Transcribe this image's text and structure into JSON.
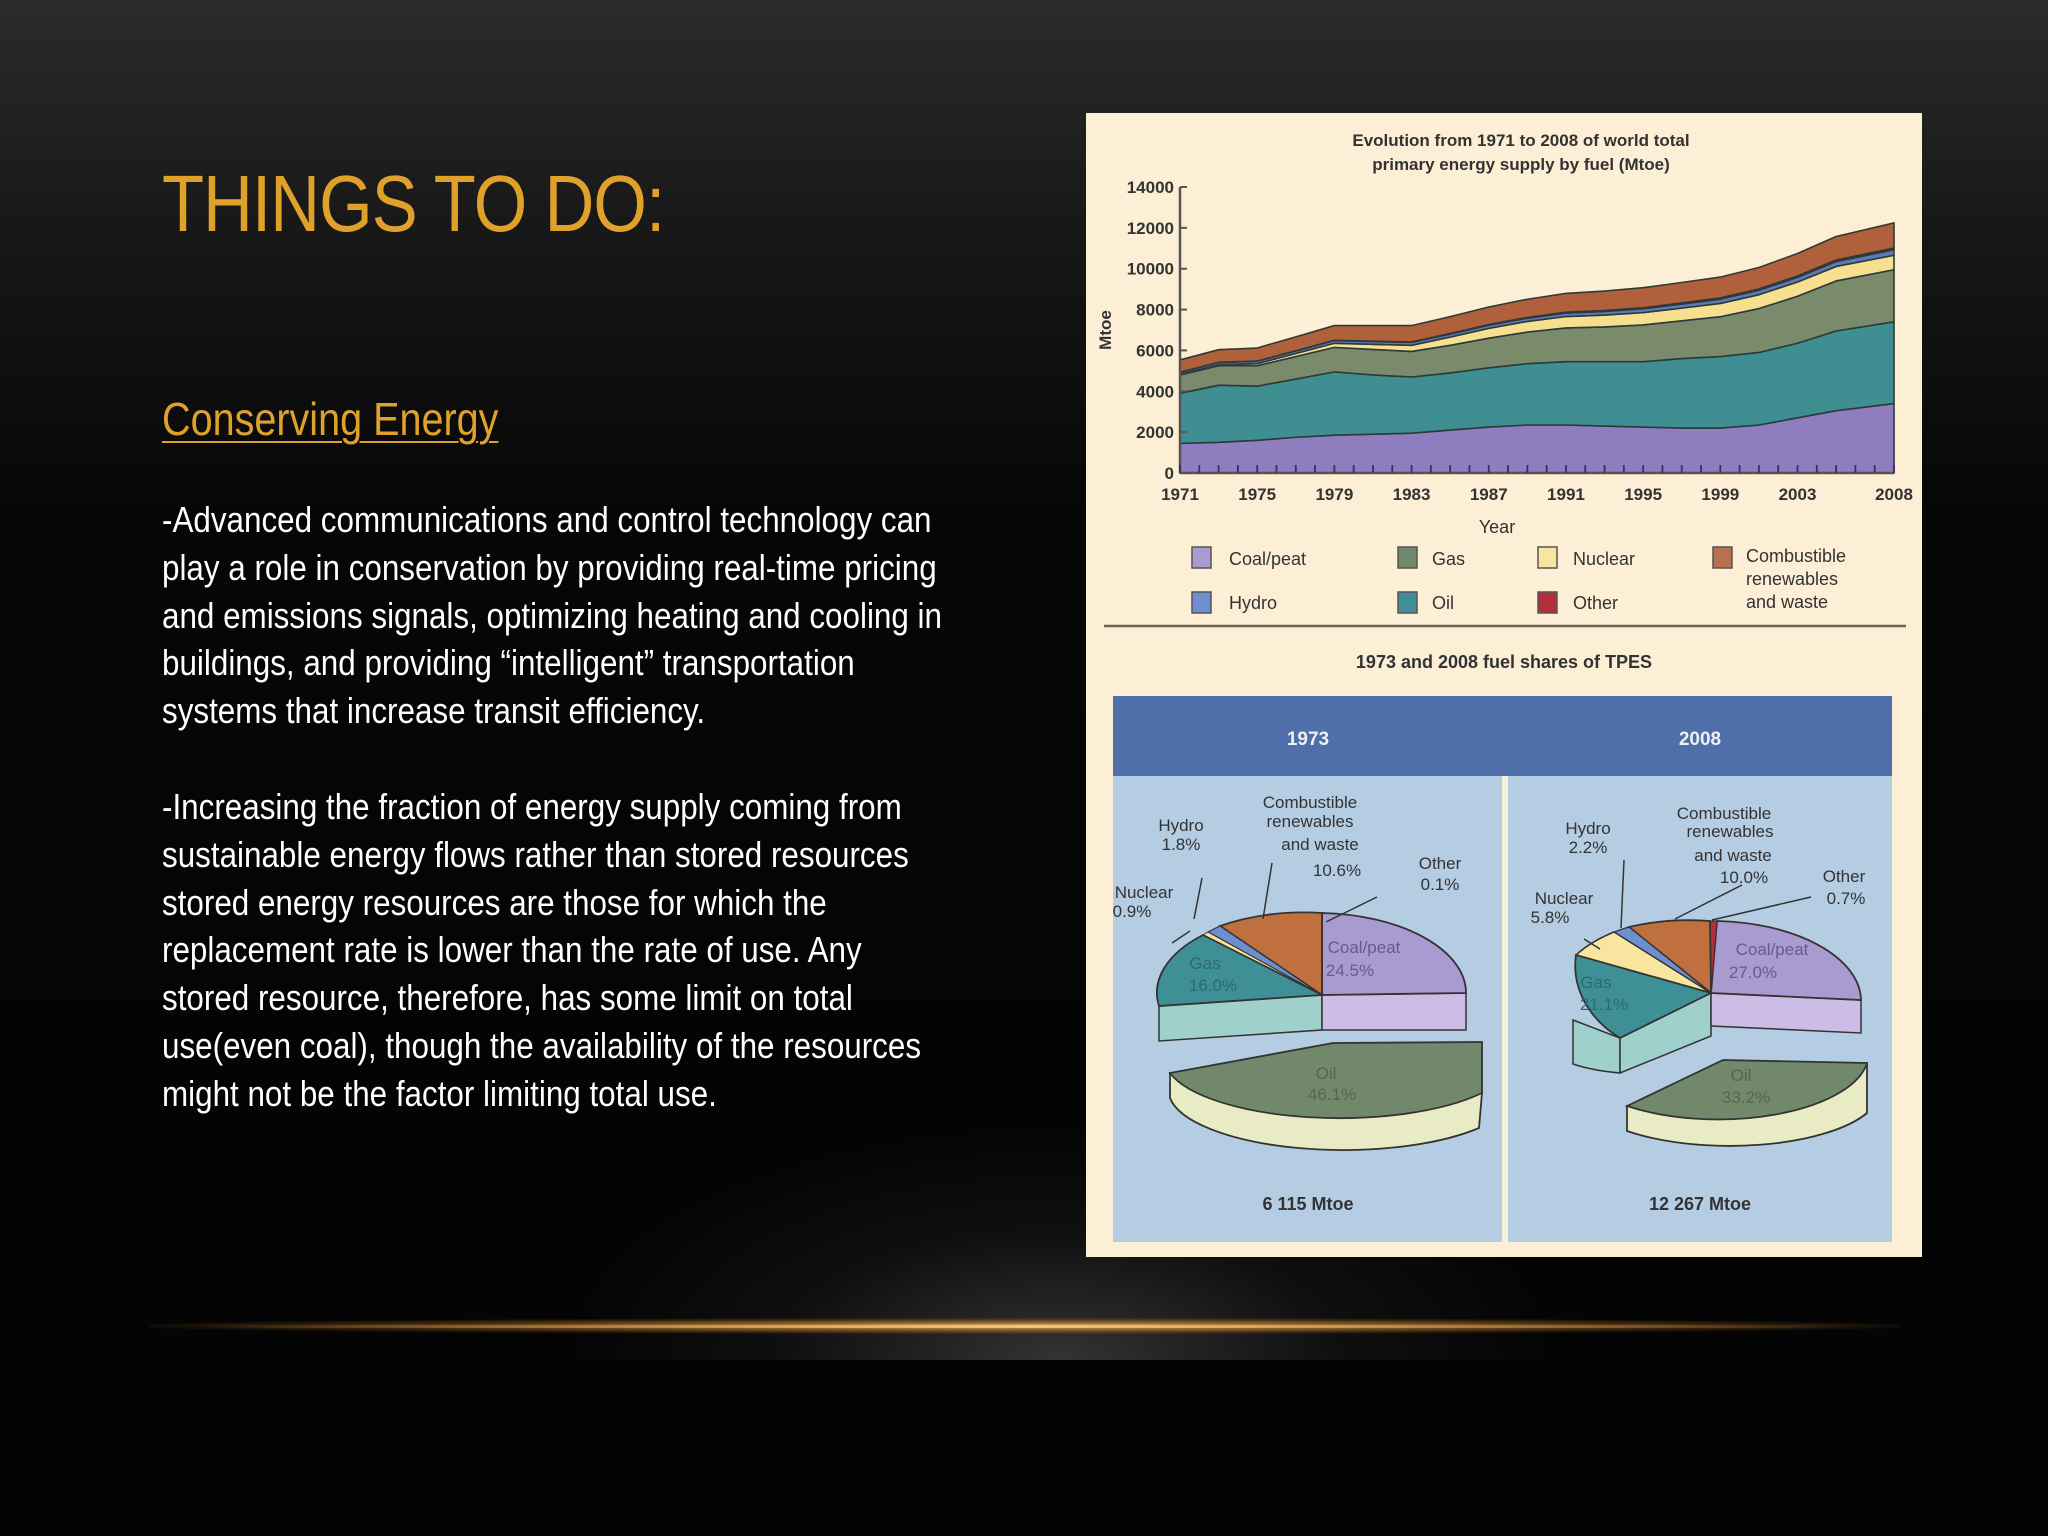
{
  "slide": {
    "title": "THINGS TO DO:",
    "subtitle": "Conserving Energy",
    "paragraph1_lines": [
      "-Advanced communications and control technology can",
      "play a role in conservation by providing real-time pricing",
      "and emissions signals, optimizing heating and cooling in",
      "buildings, and providing “intelligent” transportation",
      "systems that increase transit efficiency."
    ],
    "paragraph2_lines": [
      "-Increasing the fraction of energy supply coming from",
      "sustainable energy flows rather than stored resources",
      "stored energy resources are those for which the",
      "replacement rate is lower than the rate of use. Any",
      "stored resource, therefore, has some limit on total",
      "use(even coal), though the availability of the resources",
      "might not be the factor limiting total use."
    ]
  },
  "colors": {
    "accent": "#e0a12a",
    "coal": "#8e7dbf",
    "oil": "#3f8f92",
    "gas": "#7a8b6c",
    "nuclear": "#f6df8e",
    "hydro": "#6079b8",
    "other": "#b0303a",
    "combustible": "#b0603a",
    "pie_panel_bg": "#b5cde3",
    "pie_header_bg": "#4e6fa9",
    "figure_bg": "#fcefd5"
  },
  "chart_data": [
    {
      "type": "area",
      "stacked": true,
      "title": "Evolution from 1971 to 2008 of world total primary energy supply by fuel (Mtoe)",
      "title_lines": [
        "Evolution from 1971 to 2008 of world total",
        "primary energy supply by fuel (Mtoe)"
      ],
      "xlabel": "Year",
      "ylabel": "Mtoe",
      "ylim": [
        0,
        14000
      ],
      "yticks": [
        "0",
        "2000",
        "4000",
        "6000",
        "8000",
        "10000",
        "12000",
        "14000"
      ],
      "xticks": [
        "1971",
        "1975",
        "1979",
        "1983",
        "1987",
        "1991",
        "1995",
        "1999",
        "2003",
        "2008"
      ],
      "x": [
        1971,
        1973,
        1975,
        1977,
        1979,
        1981,
        1983,
        1985,
        1987,
        1989,
        1991,
        1993,
        1995,
        1997,
        1999,
        2001,
        2003,
        2005,
        2008
      ],
      "series": [
        {
          "name": "Coal/peat",
          "values": [
            1450,
            1500,
            1600,
            1750,
            1850,
            1900,
            1950,
            2100,
            2250,
            2350,
            2350,
            2300,
            2250,
            2200,
            2200,
            2350,
            2700,
            3050,
            3400
          ]
        },
        {
          "name": "Oil",
          "values": [
            2450,
            2800,
            2650,
            2850,
            3100,
            2900,
            2750,
            2800,
            2900,
            3000,
            3100,
            3150,
            3200,
            3400,
            3500,
            3550,
            3650,
            3900,
            4000
          ]
        },
        {
          "name": "Gas",
          "values": [
            900,
            950,
            1000,
            1100,
            1200,
            1250,
            1250,
            1350,
            1450,
            1550,
            1650,
            1700,
            1800,
            1850,
            1950,
            2150,
            2300,
            2450,
            2550
          ]
        },
        {
          "name": "Nuclear",
          "values": [
            30,
            50,
            100,
            150,
            200,
            250,
            300,
            400,
            480,
            520,
            560,
            580,
            600,
            620,
            650,
            680,
            700,
            710,
            710
          ]
        },
        {
          "name": "Hydro",
          "values": [
            100,
            110,
            120,
            125,
            135,
            140,
            145,
            150,
            155,
            160,
            170,
            180,
            190,
            200,
            210,
            215,
            225,
            240,
            270
          ]
        },
        {
          "name": "Other",
          "values": [
            5,
            6,
            8,
            10,
            12,
            15,
            20,
            25,
            30,
            35,
            40,
            45,
            50,
            55,
            60,
            65,
            70,
            75,
            85
          ]
        },
        {
          "name": "Combustible renewables and waste",
          "values": [
            600,
            620,
            640,
            680,
            720,
            760,
            800,
            830,
            860,
            890,
            920,
            950,
            980,
            1000,
            1020,
            1050,
            1100,
            1150,
            1230
          ]
        }
      ],
      "legend": [
        "Coal/peat",
        "Gas",
        "Nuclear",
        "Combustible renewables and waste",
        "Hydro",
        "Oil",
        "Other"
      ],
      "legend_position": "bottom"
    },
    {
      "type": "pie",
      "title": "1973 and 2008 fuel shares of TPES",
      "panel_label": "1973",
      "total": "6 115 Mtoe",
      "categories": [
        "Coal/peat",
        "Oil",
        "Gas",
        "Nuclear",
        "Hydro",
        "Combustible renewables and waste",
        "Other"
      ],
      "values": [
        24.5,
        46.1,
        16.0,
        0.9,
        1.8,
        10.6,
        0.1
      ],
      "labels": [
        "24.5%",
        "46.1%",
        "16.0%",
        "0.9%",
        "1.8%",
        "10.6%",
        "0.1%"
      ],
      "exploded": "Oil"
    },
    {
      "type": "pie",
      "title": "1973 and 2008 fuel shares of TPES",
      "panel_label": "2008",
      "total": "12 267 Mtoe",
      "categories": [
        "Coal/peat",
        "Oil",
        "Gas",
        "Nuclear",
        "Hydro",
        "Combustible renewables and waste",
        "Other"
      ],
      "values": [
        27.0,
        33.2,
        21.1,
        5.8,
        2.2,
        10.0,
        0.7
      ],
      "labels": [
        "27.0%",
        "33.2%",
        "21.1%",
        "5.8%",
        "2.2%",
        "10.0%",
        "0.7%"
      ],
      "exploded": "Oil"
    }
  ],
  "figure": {
    "pie_section_title": "1973 and 2008 fuel shares of  TPES",
    "pie_1973": {
      "header": "1973",
      "total": "6 115 Mtoe",
      "labels": {
        "hydro": [
          "Hydro",
          "1.8%"
        ],
        "nuclear": [
          "Nuclear",
          "0.9%"
        ],
        "combustible": [
          "Combustible",
          "renewables",
          "and waste",
          "10.6%"
        ],
        "other": [
          "Other",
          "0.1%"
        ],
        "coal": [
          "Coal/peat",
          "24.5%"
        ],
        "gas": [
          "Gas",
          "16.0%"
        ],
        "oil": [
          "Oil",
          "46.1%"
        ]
      }
    },
    "pie_2008": {
      "header": "2008",
      "total": "12 267 Mtoe",
      "labels": {
        "hydro": [
          "Hydro",
          "2.2%"
        ],
        "nuclear": [
          "Nuclear",
          "5.8%"
        ],
        "combustible": [
          "Combustible",
          "renewables",
          "and waste",
          "10.0%"
        ],
        "other": [
          "Other",
          "0.7%"
        ],
        "coal": [
          "Coal/peat",
          "27.0%"
        ],
        "gas": [
          "Gas",
          "21.1%"
        ],
        "oil": [
          "Oil",
          "33.2%"
        ]
      }
    },
    "legend_items": [
      {
        "label": "Coal/peat",
        "color": "#a99ad0"
      },
      {
        "label": "Gas",
        "color": "#72886a"
      },
      {
        "label": "Nuclear",
        "color": "#f8e6a0"
      },
      {
        "label": "Combustible renewables and waste",
        "label_lines": [
          "Combustible",
          "renewables",
          "and waste"
        ],
        "color": "#b8704e"
      },
      {
        "label": "Hydro",
        "color": "#6d8fcf"
      },
      {
        "label": "Oil",
        "color": "#3f9096"
      },
      {
        "label": "Other",
        "color": "#b3303a"
      }
    ]
  }
}
